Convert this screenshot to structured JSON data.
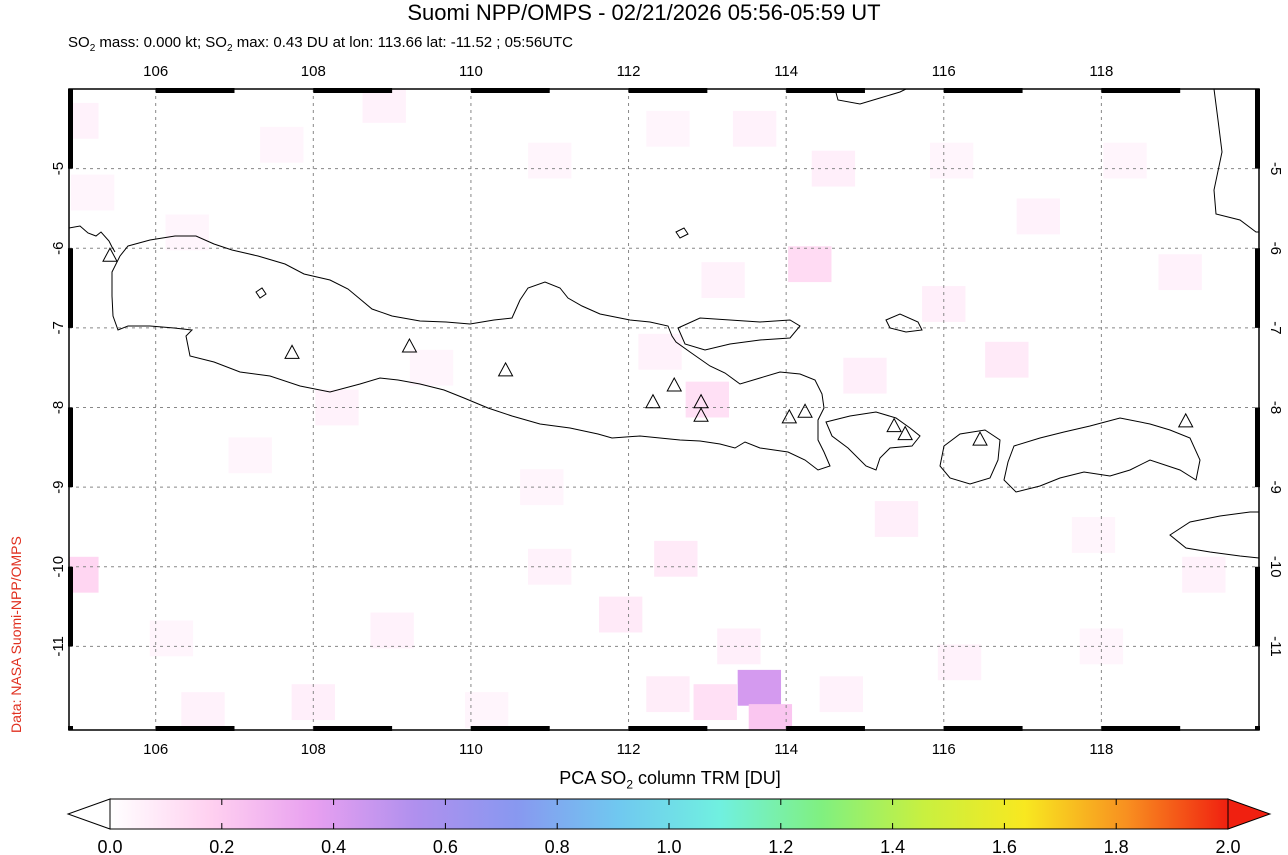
{
  "map": {
    "title": "Suomi NPP/OMPS - 02/21/2026 05:56-05:59 UT",
    "subtitle": {
      "part1": "SO",
      "sub1": "2",
      "part2": " mass: 0.000 kt; SO",
      "sub2": "2",
      "part3": " max: 0.43 DU at lon: 113.66 lat: -11.52 ; 05:56UTC"
    },
    "credit": "Data: NASA Suomi-NPP/OMPS",
    "lon_ticks": [
      "106",
      "108",
      "110",
      "112",
      "114",
      "116",
      "118"
    ],
    "lat_ticks": [
      "-5",
      "-6",
      "-7",
      "-8",
      "-9",
      "-10",
      "-11"
    ],
    "extent": {
      "lon_min": 104.9,
      "lon_max": 120.0,
      "lat_max": -4.0,
      "lat_min": -12.05
    },
    "volcano_markers": [
      {
        "lon": 105.42,
        "lat": -6.1
      },
      {
        "lon": 107.73,
        "lat": -7.32
      },
      {
        "lon": 109.22,
        "lat": -7.24
      },
      {
        "lon": 110.44,
        "lat": -7.54
      },
      {
        "lon": 112.31,
        "lat": -7.94
      },
      {
        "lon": 112.58,
        "lat": -7.73
      },
      {
        "lon": 112.92,
        "lat": -7.94
      },
      {
        "lon": 112.92,
        "lat": -8.11
      },
      {
        "lon": 114.04,
        "lat": -8.13
      },
      {
        "lon": 114.24,
        "lat": -8.06
      },
      {
        "lon": 115.37,
        "lat": -8.24
      },
      {
        "lon": 115.51,
        "lat": -8.34
      },
      {
        "lon": 116.46,
        "lat": -8.41
      },
      {
        "lon": 119.07,
        "lat": -8.18
      }
    ],
    "so2_cells": [
      {
        "lon": 105.0,
        "lat": -4.4,
        "v": 0.05
      },
      {
        "lon": 105.2,
        "lat": -5.3,
        "v": 0.04
      },
      {
        "lon": 106.4,
        "lat": -5.8,
        "v": 0.04
      },
      {
        "lon": 107.6,
        "lat": -4.7,
        "v": 0.04
      },
      {
        "lon": 108.9,
        "lat": -4.2,
        "v": 0.05
      },
      {
        "lon": 111.0,
        "lat": -4.9,
        "v": 0.04
      },
      {
        "lon": 112.5,
        "lat": -4.5,
        "v": 0.04
      },
      {
        "lon": 113.6,
        "lat": -4.5,
        "v": 0.05
      },
      {
        "lon": 114.6,
        "lat": -5.0,
        "v": 0.06
      },
      {
        "lon": 116.1,
        "lat": -4.9,
        "v": 0.04
      },
      {
        "lon": 117.2,
        "lat": -5.6,
        "v": 0.05
      },
      {
        "lon": 118.3,
        "lat": -4.9,
        "v": 0.04
      },
      {
        "lon": 119.0,
        "lat": -6.3,
        "v": 0.05
      },
      {
        "lon": 116.0,
        "lat": -6.7,
        "v": 0.06
      },
      {
        "lon": 114.3,
        "lat": -6.2,
        "v": 0.14
      },
      {
        "lon": 113.2,
        "lat": -6.4,
        "v": 0.05
      },
      {
        "lon": 116.8,
        "lat": -7.4,
        "v": 0.08
      },
      {
        "lon": 115.0,
        "lat": -7.6,
        "v": 0.06
      },
      {
        "lon": 113.0,
        "lat": -7.9,
        "v": 0.12
      },
      {
        "lon": 112.4,
        "lat": -7.3,
        "v": 0.05
      },
      {
        "lon": 109.5,
        "lat": -7.5,
        "v": 0.04
      },
      {
        "lon": 108.3,
        "lat": -8.0,
        "v": 0.05
      },
      {
        "lon": 107.2,
        "lat": -8.6,
        "v": 0.04
      },
      {
        "lon": 110.9,
        "lat": -9.0,
        "v": 0.04
      },
      {
        "lon": 111.0,
        "lat": -10.0,
        "v": 0.05
      },
      {
        "lon": 112.6,
        "lat": -9.9,
        "v": 0.08
      },
      {
        "lon": 115.4,
        "lat": -9.4,
        "v": 0.06
      },
      {
        "lon": 117.9,
        "lat": -9.6,
        "v": 0.04
      },
      {
        "lon": 119.3,
        "lat": -10.1,
        "v": 0.05
      },
      {
        "lon": 105.0,
        "lat": -10.1,
        "v": 0.16
      },
      {
        "lon": 106.2,
        "lat": -10.9,
        "v": 0.04
      },
      {
        "lon": 109.0,
        "lat": -10.8,
        "v": 0.05
      },
      {
        "lon": 111.9,
        "lat": -10.6,
        "v": 0.08
      },
      {
        "lon": 113.4,
        "lat": -11.0,
        "v": 0.06
      },
      {
        "lon": 116.2,
        "lat": -11.2,
        "v": 0.05
      },
      {
        "lon": 118.0,
        "lat": -11.0,
        "v": 0.04
      },
      {
        "lon": 112.5,
        "lat": -11.6,
        "v": 0.07
      },
      {
        "lon": 113.1,
        "lat": -11.7,
        "v": 0.12
      },
      {
        "lon": 113.66,
        "lat": -11.52,
        "v": 0.43
      },
      {
        "lon": 113.8,
        "lat": -11.95,
        "v": 0.22
      },
      {
        "lon": 114.7,
        "lat": -11.6,
        "v": 0.05
      },
      {
        "lon": 106.6,
        "lat": -11.8,
        "v": 0.05
      },
      {
        "lon": 108.0,
        "lat": -11.7,
        "v": 0.06
      },
      {
        "lon": 110.2,
        "lat": -11.8,
        "v": 0.04
      }
    ]
  },
  "colorbar": {
    "title_main": "PCA SO",
    "title_sub": "2",
    "title_rest": " column TRM [DU]",
    "ticks": [
      "0.0",
      "0.2",
      "0.4",
      "0.6",
      "0.8",
      "1.0",
      "1.2",
      "1.4",
      "1.6",
      "1.8",
      "2.0"
    ],
    "range": [
      0.0,
      2.0
    ],
    "colors": [
      "#ffffff",
      "#ffd0f0",
      "#e8a0f0",
      "#b090ee",
      "#8898f0",
      "#70c8f0",
      "#70f0e0",
      "#80f080",
      "#c8f040",
      "#f8e820",
      "#f89020",
      "#f02010"
    ]
  }
}
